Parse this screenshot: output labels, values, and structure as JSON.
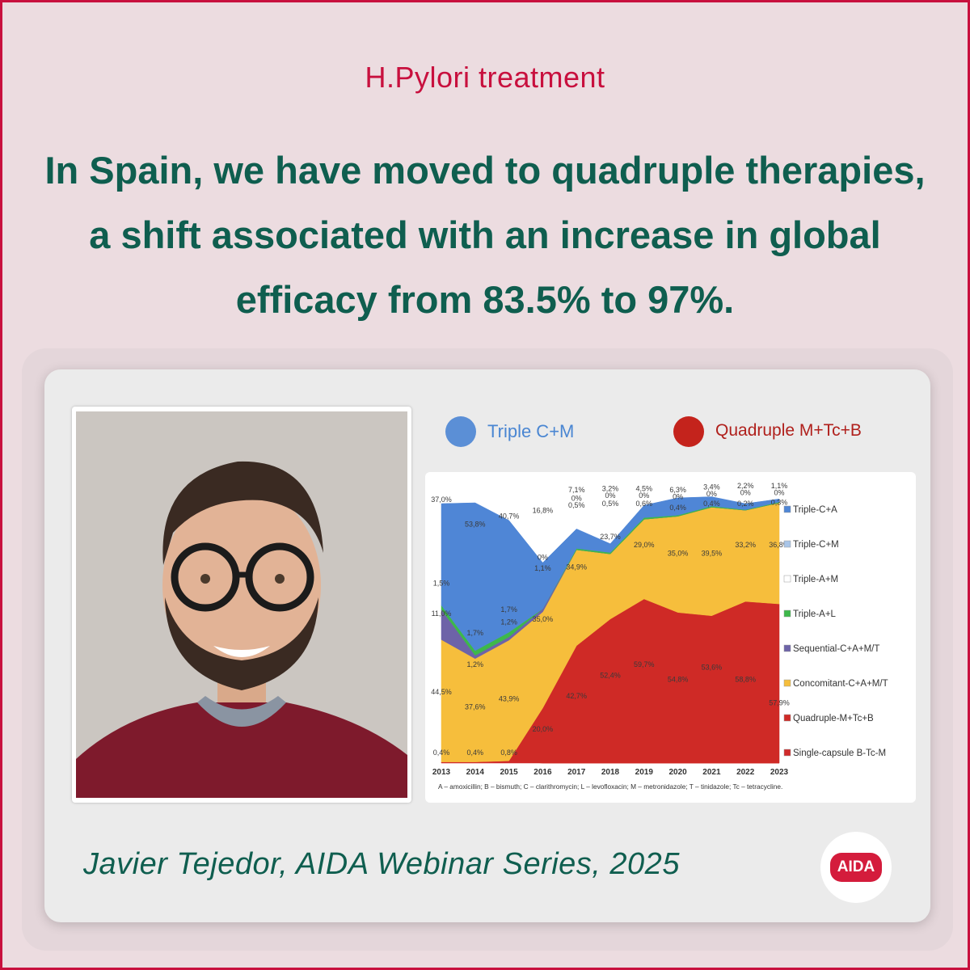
{
  "header": {
    "eyebrow": "H.Pylori treatment",
    "headline": "In Spain, we have moved to quadruple therapies, a shift associated with an increase in global efficacy from 83.5% to 97%."
  },
  "legend_top": [
    {
      "label": "Triple C+M",
      "color": "#5b8fd6"
    },
    {
      "label": "Quadruple M+Tc+B",
      "color": "#c4231c"
    }
  ],
  "chart_data": {
    "type": "area",
    "x": [
      "2013",
      "2014",
      "2015",
      "2016",
      "2017",
      "2018",
      "2019",
      "2020",
      "2021",
      "2022",
      "2023"
    ],
    "ylim": [
      0,
      100
    ],
    "series": [
      {
        "name": "Single-capsule  B-Tc-M",
        "color": "#d02a2a",
        "values": [
          0.4,
          0.4,
          0.8,
          0,
          0,
          0,
          0,
          0,
          0,
          0,
          0
        ]
      },
      {
        "name": "Quadruple-M+Tc+B",
        "color": "#cf2a26",
        "values": [
          0,
          0,
          0,
          20.0,
          42.7,
          52.4,
          59.7,
          54.8,
          53.6,
          58.8,
          57.9
        ]
      },
      {
        "name": "Concomitant-C+A+M/T",
        "color": "#f6be3c",
        "values": [
          44.5,
          37.6,
          43.9,
          35.0,
          34.9,
          23.7,
          29.0,
          35.0,
          39.5,
          33.2,
          36.8
        ]
      },
      {
        "name": "Sequential-C+A+M/T",
        "color": "#6d63a8",
        "values": [
          11.0,
          1.2,
          1.2,
          1.1,
          0,
          0,
          0,
          0,
          0,
          0,
          0
        ]
      },
      {
        "name": "Triple-A+L",
        "color": "#3db84a",
        "values": [
          1.5,
          1.7,
          1.7,
          0,
          0.5,
          0.5,
          0.6,
          0.4,
          0.4,
          0.2,
          0.3
        ]
      },
      {
        "name": "Triple-A+M",
        "color": "#ffffff",
        "values": [
          0,
          0,
          0,
          0,
          0,
          0,
          0,
          0,
          0,
          0,
          0
        ]
      },
      {
        "name": "Triple-C+M",
        "color": "#a9c5e8",
        "values": [
          0,
          0,
          0,
          0,
          0,
          0,
          0,
          0,
          0,
          0,
          0
        ]
      },
      {
        "name": "Triple-C+A",
        "color": "#4f86d6",
        "values": [
          37.0,
          53.8,
          40.7,
          16.8,
          7.1,
          3.2,
          4.5,
          6.3,
          3.4,
          2.2,
          1.1
        ]
      }
    ],
    "labels": [
      {
        "text": "37,0%",
        "xi": 0,
        "y": 95
      },
      {
        "text": "53,8%",
        "xi": 1,
        "y": 86
      },
      {
        "text": "40,7%",
        "xi": 2,
        "y": 89
      },
      {
        "text": "16,8%",
        "xi": 3,
        "y": 91
      },
      {
        "text": "7,1%",
        "xi": 4,
        "y": 98.5
      },
      {
        "text": "0%",
        "xi": 4,
        "y": 95.5
      },
      {
        "text": "0,5%",
        "xi": 4,
        "y": 93
      },
      {
        "text": "3,2%",
        "xi": 5,
        "y": 99
      },
      {
        "text": "0%",
        "xi": 5,
        "y": 96.5
      },
      {
        "text": "0,5%",
        "xi": 5,
        "y": 93.5
      },
      {
        "text": "4,5%",
        "xi": 6,
        "y": 99
      },
      {
        "text": "0%",
        "xi": 6,
        "y": 96.5
      },
      {
        "text": "0,6%",
        "xi": 6,
        "y": 93.5
      },
      {
        "text": "6,3%",
        "xi": 7,
        "y": 98.5
      },
      {
        "text": "0%",
        "xi": 7,
        "y": 96
      },
      {
        "text": "0,4%",
        "xi": 7,
        "y": 92
      },
      {
        "text": "3,4%",
        "xi": 8,
        "y": 99.5
      },
      {
        "text": "0%",
        "xi": 8,
        "y": 97
      },
      {
        "text": "0,4%",
        "xi": 8,
        "y": 93.5
      },
      {
        "text": "2,2%",
        "xi": 9,
        "y": 100
      },
      {
        "text": "0%",
        "xi": 9,
        "y": 97.5
      },
      {
        "text": "0,2%",
        "xi": 9,
        "y": 93.5
      },
      {
        "text": "1,1%",
        "xi": 10,
        "y": 100
      },
      {
        "text": "0%",
        "xi": 10,
        "y": 97.5
      },
      {
        "text": "0,3%",
        "xi": 10,
        "y": 94
      },
      {
        "text": "1,5%",
        "xi": 0,
        "y": 64.5
      },
      {
        "text": "11,0%",
        "xi": 0,
        "y": 53.5
      },
      {
        "text": "1,7%",
        "xi": 1,
        "y": 46.5
      },
      {
        "text": "1,2%",
        "xi": 1,
        "y": 35
      },
      {
        "text": "1,7%",
        "xi": 2,
        "y": 55
      },
      {
        "text": "1,2%",
        "xi": 2,
        "y": 50.5
      },
      {
        "text": "0%",
        "xi": 3,
        "y": 74
      },
      {
        "text": "1,1%",
        "xi": 3,
        "y": 70
      },
      {
        "text": "35,0%",
        "xi": 3,
        "y": 51.5
      },
      {
        "text": "34,9%",
        "xi": 4,
        "y": 70.5
      },
      {
        "text": "23,7%",
        "xi": 5,
        "y": 81.5
      },
      {
        "text": "29,0%",
        "xi": 6,
        "y": 78.5
      },
      {
        "text": "35,0%",
        "xi": 7,
        "y": 75.5
      },
      {
        "text": "39,5%",
        "xi": 8,
        "y": 75.5
      },
      {
        "text": "33,2%",
        "xi": 9,
        "y": 78.5
      },
      {
        "text": "36,8%",
        "xi": 10,
        "y": 78.5
      },
      {
        "text": "44,5%",
        "xi": 0,
        "y": 25
      },
      {
        "text": "37,6%",
        "xi": 1,
        "y": 19.5
      },
      {
        "text": "43,9%",
        "xi": 2,
        "y": 22.5
      },
      {
        "text": "20,0%",
        "xi": 3,
        "y": 11.5
      },
      {
        "text": "42,7%",
        "xi": 4,
        "y": 23.5
      },
      {
        "text": "52,4%",
        "xi": 5,
        "y": 31
      },
      {
        "text": "59,7%",
        "xi": 6,
        "y": 35
      },
      {
        "text": "54,8%",
        "xi": 7,
        "y": 29.5
      },
      {
        "text": "53,6%",
        "xi": 8,
        "y": 34
      },
      {
        "text": "58,8%",
        "xi": 9,
        "y": 29.5
      },
      {
        "text": "57,9%",
        "xi": 10,
        "y": 21
      },
      {
        "text": "0,4%",
        "xi": 0,
        "y": 3
      },
      {
        "text": "0,4%",
        "xi": 1,
        "y": 3
      },
      {
        "text": "0,8%",
        "xi": 2,
        "y": 3
      }
    ],
    "legend_order": [
      "Triple-C+A",
      "Triple-C+M",
      "Triple-A+M",
      "Triple-A+L",
      "Sequential-C+A+M/T",
      "Concomitant-C+A+M/T",
      "Quadruple-M+Tc+B",
      "Single-capsule  B-Tc-M"
    ],
    "footnote": "A – amoxicillin; B – bismuth; C – clarithromycin; L – levofloxacin; M – metronidazole; T – tinidazole; Tc – tetracycline."
  },
  "footer": {
    "citation": "Javier Tejedor, AIDA Webinar Series, 2025",
    "badge": "AIDA"
  }
}
